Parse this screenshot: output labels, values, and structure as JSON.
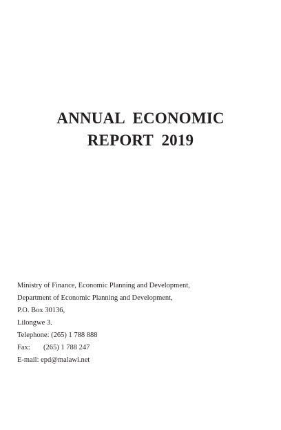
{
  "title": {
    "line1": "ANNUAL  ECONOMIC",
    "line2": "REPORT  2019"
  },
  "address": {
    "ministry": "Ministry of Finance, Economic Planning and Development,",
    "department": "Department of Economic Planning and Development,",
    "po_box": "P.O. Box 30136,",
    "city": "Lilongwe 3.",
    "telephone": "Telephone: (265) 1 788 888",
    "fax_label": "Fax:",
    "fax_number": "(265) 1 788 247",
    "email": "E-mail: epd@malawi.net"
  }
}
